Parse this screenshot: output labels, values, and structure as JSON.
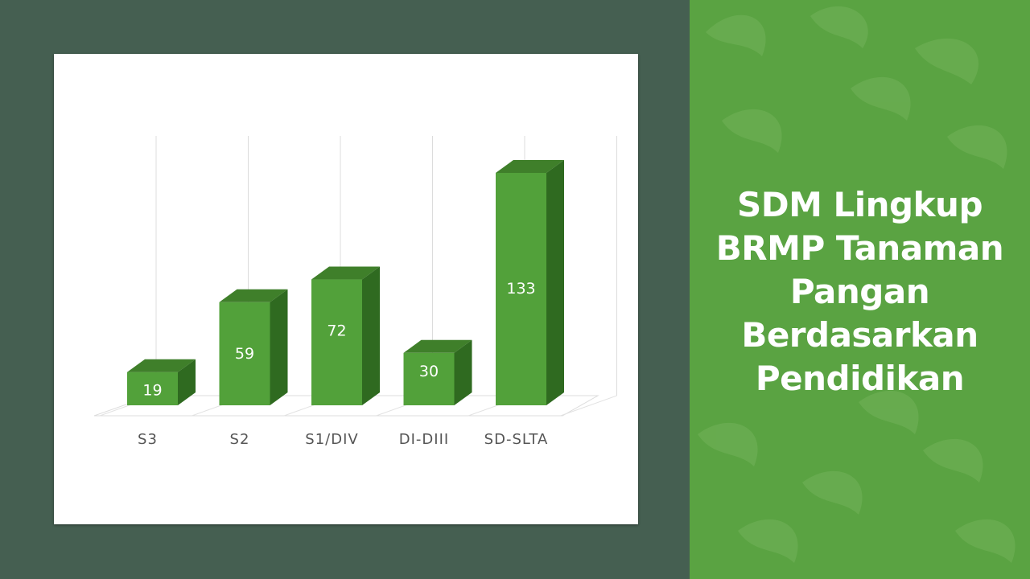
{
  "slide": {
    "title_lines": [
      "SDM Lingkup",
      "BRMP Tanaman",
      "Pangan",
      "Berdasarkan",
      "Pendidikan"
    ]
  },
  "colors": {
    "background": "#455f51",
    "panel": "#5aa342",
    "bar_front": "#52a13a",
    "bar_top": "#3f7f2a",
    "bar_side": "#2f6a20"
  },
  "chart_data": {
    "type": "bar",
    "categories": [
      "S3",
      "S2",
      "S1/DIV",
      "DI-DIII",
      "SD-SLTA"
    ],
    "values": [
      19,
      59,
      72,
      30,
      133
    ],
    "ylim": [
      0,
      140
    ],
    "grid": true,
    "data_labels": true,
    "style": "3d-column"
  }
}
